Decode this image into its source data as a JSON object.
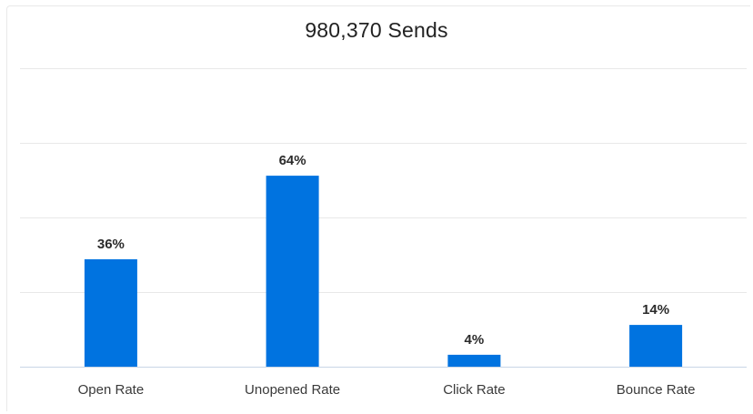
{
  "chart_data": {
    "type": "bar",
    "title": "980,370 Sends",
    "categories": [
      "Open Rate",
      "Unopened Rate",
      "Click Rate",
      "Bounce Rate"
    ],
    "values": [
      36,
      64,
      4,
      14
    ],
    "value_labels": [
      "36%",
      "64%",
      "4%",
      "14%"
    ],
    "ylim": [
      0,
      100
    ],
    "grid": true,
    "legend": "none",
    "bar_color": "#0073e0"
  }
}
